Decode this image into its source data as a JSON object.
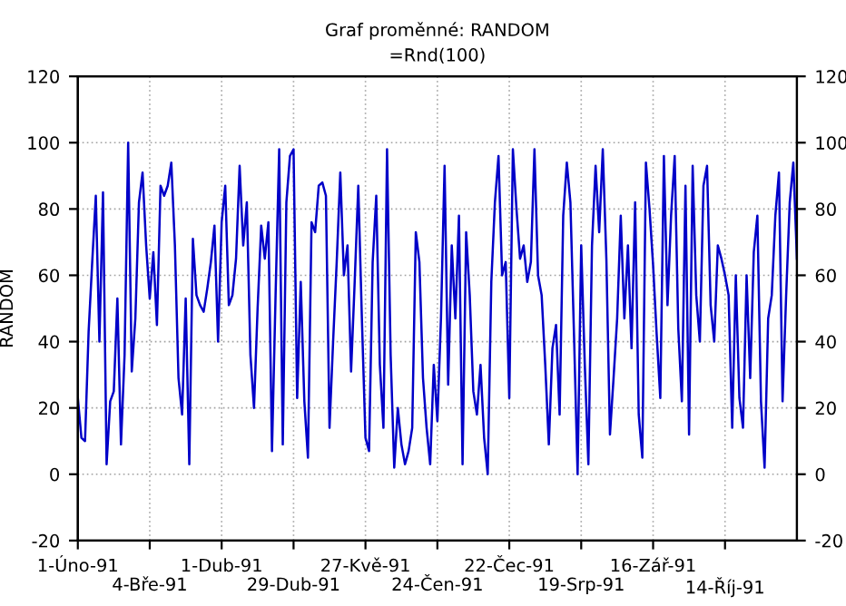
{
  "chart_data": {
    "type": "line",
    "title": "Graf proměnné: RANDOM",
    "subtitle": "=Rnd(100)",
    "ylabel": "RANDOM",
    "categories": [
      "1-Úno-91",
      null,
      null,
      null,
      null,
      null,
      null,
      null,
      null,
      null,
      null,
      null,
      null,
      null,
      null,
      null,
      null,
      null,
      null,
      null,
      "4-Bře-91",
      null,
      null,
      null,
      null,
      null,
      null,
      null,
      null,
      null,
      null,
      null,
      null,
      null,
      null,
      null,
      null,
      null,
      null,
      null,
      "1-Dub-91",
      null,
      null,
      null,
      null,
      null,
      null,
      null,
      null,
      null,
      null,
      null,
      null,
      null,
      null,
      null,
      null,
      null,
      null,
      null,
      "29-Dub-91",
      null,
      null,
      null,
      null,
      null,
      null,
      null,
      null,
      null,
      null,
      null,
      null,
      null,
      null,
      null,
      null,
      null,
      null,
      null,
      "27-Kvě-91",
      null,
      null,
      null,
      null,
      null,
      null,
      null,
      null,
      null,
      null,
      null,
      null,
      null,
      null,
      null,
      null,
      null,
      null,
      null,
      "24-Čen-91",
      null,
      null,
      null,
      null,
      null,
      null,
      null,
      null,
      null,
      null,
      null,
      null,
      null,
      null,
      null,
      null,
      null,
      null,
      null,
      "22-Čec-91",
      null,
      null,
      null,
      null,
      null,
      null,
      null,
      null,
      null,
      null,
      null,
      null,
      null,
      null,
      null,
      null,
      null,
      null,
      null,
      "19-Srp-91",
      null,
      null,
      null,
      null,
      null,
      null,
      null,
      null,
      null,
      null,
      null,
      null,
      null,
      null,
      null,
      null,
      null,
      null,
      null,
      "16-Zář-91",
      null,
      null,
      null,
      null,
      null,
      null,
      null,
      null,
      null,
      null,
      null,
      null,
      null,
      null,
      null,
      null,
      null,
      null,
      null,
      "14-Říj-91",
      null,
      null,
      null,
      null,
      null,
      null,
      null,
      null,
      null,
      null,
      null,
      null,
      null,
      null,
      null,
      null,
      null,
      null,
      null,
      null
    ],
    "ylim": [
      -20,
      120
    ],
    "yticks": [
      -20,
      0,
      20,
      40,
      60,
      80,
      100,
      120
    ],
    "y2lim": [
      -20,
      120
    ],
    "y2ticks": [
      -20,
      0,
      20,
      40,
      60,
      80,
      100,
      120
    ],
    "grid": true,
    "series": [
      {
        "color": "#0000c8",
        "values": [
          23,
          11,
          10,
          43,
          64,
          84,
          40,
          85,
          3,
          22,
          25,
          53,
          9,
          36,
          100,
          31,
          47,
          82,
          91,
          69,
          53,
          67,
          45,
          87,
          84,
          87,
          94,
          69,
          29,
          18,
          53,
          3,
          71,
          54,
          51,
          49,
          56,
          64,
          75,
          40,
          76,
          87,
          51,
          54,
          65,
          93,
          69,
          82,
          36,
          20,
          50,
          75,
          65,
          76,
          7,
          54,
          98,
          9,
          82,
          96,
          98,
          23,
          58,
          22,
          5,
          76,
          73,
          87,
          88,
          84,
          14,
          40,
          64,
          91,
          60,
          69,
          31,
          58,
          87,
          47,
          11,
          7,
          64,
          84,
          33,
          14,
          98,
          36,
          2,
          20,
          9,
          3,
          7,
          14,
          73,
          64,
          29,
          14,
          3,
          33,
          16,
          47,
          93,
          27,
          69,
          47,
          78,
          3,
          73,
          54,
          25,
          18,
          33,
          11,
          0,
          58,
          82,
          96,
          60,
          64,
          23,
          98,
          80,
          65,
          69,
          58,
          64,
          98,
          60,
          54,
          33,
          9,
          38,
          45,
          18,
          78,
          94,
          82,
          42,
          0,
          69,
          33,
          3,
          69,
          93,
          73,
          98,
          65,
          12,
          29,
          47,
          78,
          47,
          69,
          38,
          82,
          18,
          5,
          94,
          80,
          63,
          42,
          23,
          96,
          51,
          78,
          96,
          44,
          22,
          87,
          12,
          93,
          54,
          40,
          87,
          93,
          51,
          40,
          69,
          65,
          60,
          54,
          14,
          60,
          23,
          14,
          60,
          29,
          67,
          78,
          22,
          2,
          47,
          54,
          78,
          91,
          22,
          54,
          82,
          94,
          65
        ]
      }
    ]
  }
}
